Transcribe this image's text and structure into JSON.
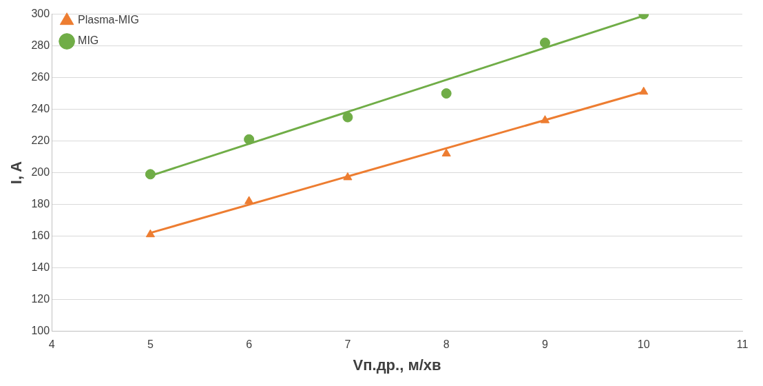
{
  "chart_data": {
    "type": "scatter",
    "xlabel": "Vп.др., м/хв",
    "ylabel": "I, A",
    "xlim": [
      4,
      11
    ],
    "xticks": [
      4,
      5,
      6,
      7,
      8,
      9,
      10,
      11
    ],
    "ylim": [
      100,
      300
    ],
    "yticks": [
      100,
      120,
      140,
      160,
      180,
      200,
      220,
      240,
      260,
      280,
      300
    ],
    "grid": "y",
    "legend": "top left",
    "series": [
      {
        "name": "Plasma-MIG",
        "color": "#ed7d31",
        "marker": "triangle",
        "x": [
          5,
          6,
          7,
          8,
          9,
          10
        ],
        "values": [
          161,
          182,
          197,
          212,
          233,
          251
        ]
      },
      {
        "name": "MIG",
        "color": "#70ad47",
        "marker": "circle",
        "x": [
          5,
          6,
          7,
          8,
          9,
          10
        ],
        "values": [
          199,
          221,
          235,
          250,
          282,
          300
        ]
      },
      {
        "type": "line",
        "color": "#ed7d31",
        "marker": "none",
        "x": [
          5,
          10
        ],
        "values": [
          162,
          251
        ]
      },
      {
        "type": "line",
        "color": "#70ad47",
        "marker": "none",
        "x": [
          5,
          10
        ],
        "values": [
          198,
          299
        ]
      }
    ]
  }
}
